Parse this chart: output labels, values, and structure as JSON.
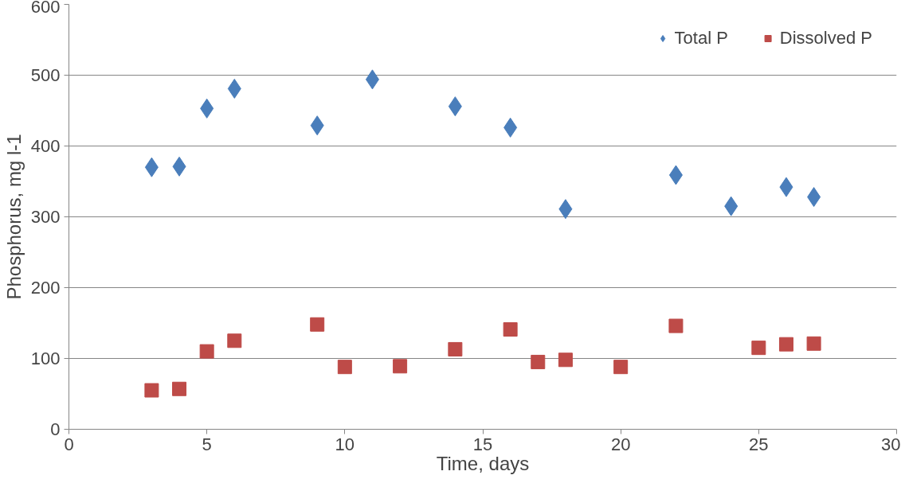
{
  "chart_data": {
    "type": "scatter",
    "xlabel": "Time, days",
    "ylabel": "Phosphorus, mg l-1",
    "xlim": [
      0,
      30
    ],
    "xticks": [
      0,
      5,
      10,
      15,
      20,
      25,
      30
    ],
    "ylim": [
      0,
      600
    ],
    "yticks": [
      0,
      100,
      200,
      300,
      400,
      500,
      600
    ],
    "grid": "y",
    "legend": "top right",
    "series": [
      {
        "name": "Total P",
        "color": "#4a7ebb",
        "marker": "diamond",
        "x": [
          3,
          4,
          5,
          6,
          9,
          11,
          14,
          16,
          18,
          22,
          24,
          26,
          27
        ],
        "values": [
          370,
          371,
          453,
          481,
          429,
          494,
          456,
          426,
          311,
          359,
          315,
          342,
          328
        ]
      },
      {
        "name": "Dissolved P",
        "color": "#be4b48",
        "marker": "square",
        "x": [
          3,
          4,
          5,
          6,
          9,
          10,
          12,
          14,
          16,
          17,
          18,
          20,
          22,
          25,
          26,
          27
        ],
        "values": [
          55,
          57,
          110,
          125,
          148,
          88,
          89,
          113,
          141,
          95,
          98,
          88,
          146,
          115,
          120,
          121
        ]
      }
    ]
  }
}
